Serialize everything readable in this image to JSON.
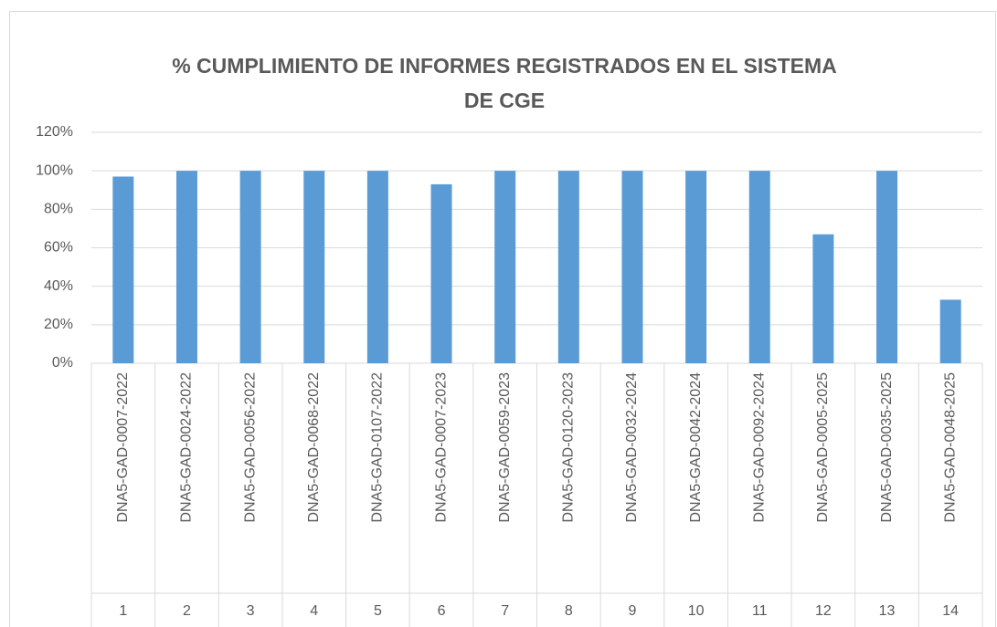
{
  "chart_data": {
    "type": "bar",
    "title": [
      "% CUMPLIMIENTO DE INFORMES REGISTRADOS EN EL SISTEMA",
      "DE CGE"
    ],
    "categories": [
      "DNA5-GAD-0007-2022",
      "DNA5-GAD-0024-2022",
      "DNA5-GAD-0056-2022",
      "DNA5-GAD-0068-2022",
      "DNA5-GAD-0107-2022",
      "DNA5-GAD-0007-2023",
      "DNA5-GAD-0059-2023",
      "DNA5-GAD-0120-2023",
      "DNA5-GAD-0032-2024",
      "DNA5-GAD-0042-2024",
      "DNA5-GAD-0092-2024",
      "DNA5-GAD-0005-2025",
      "DNA5-GAD-0035-2025",
      "DNA5-GAD-0048-2025"
    ],
    "category_groups": [
      "1",
      "2",
      "3",
      "4",
      "5",
      "6",
      "7",
      "8",
      "9",
      "10",
      "11",
      "12",
      "13",
      "14"
    ],
    "values": [
      97,
      100,
      100,
      100,
      100,
      93,
      100,
      100,
      100,
      100,
      100,
      67,
      100,
      33
    ],
    "color": "#5b9bd5",
    "ylim": [
      0,
      120
    ],
    "yticks": [
      {
        "value": 0,
        "label": "0%"
      },
      {
        "value": 20,
        "label": "20%"
      },
      {
        "value": 40,
        "label": "40%"
      },
      {
        "value": 60,
        "label": "60%"
      },
      {
        "value": 80,
        "label": "80%"
      },
      {
        "value": 100,
        "label": "100%"
      },
      {
        "value": 120,
        "label": "120%"
      }
    ],
    "grid": true
  }
}
